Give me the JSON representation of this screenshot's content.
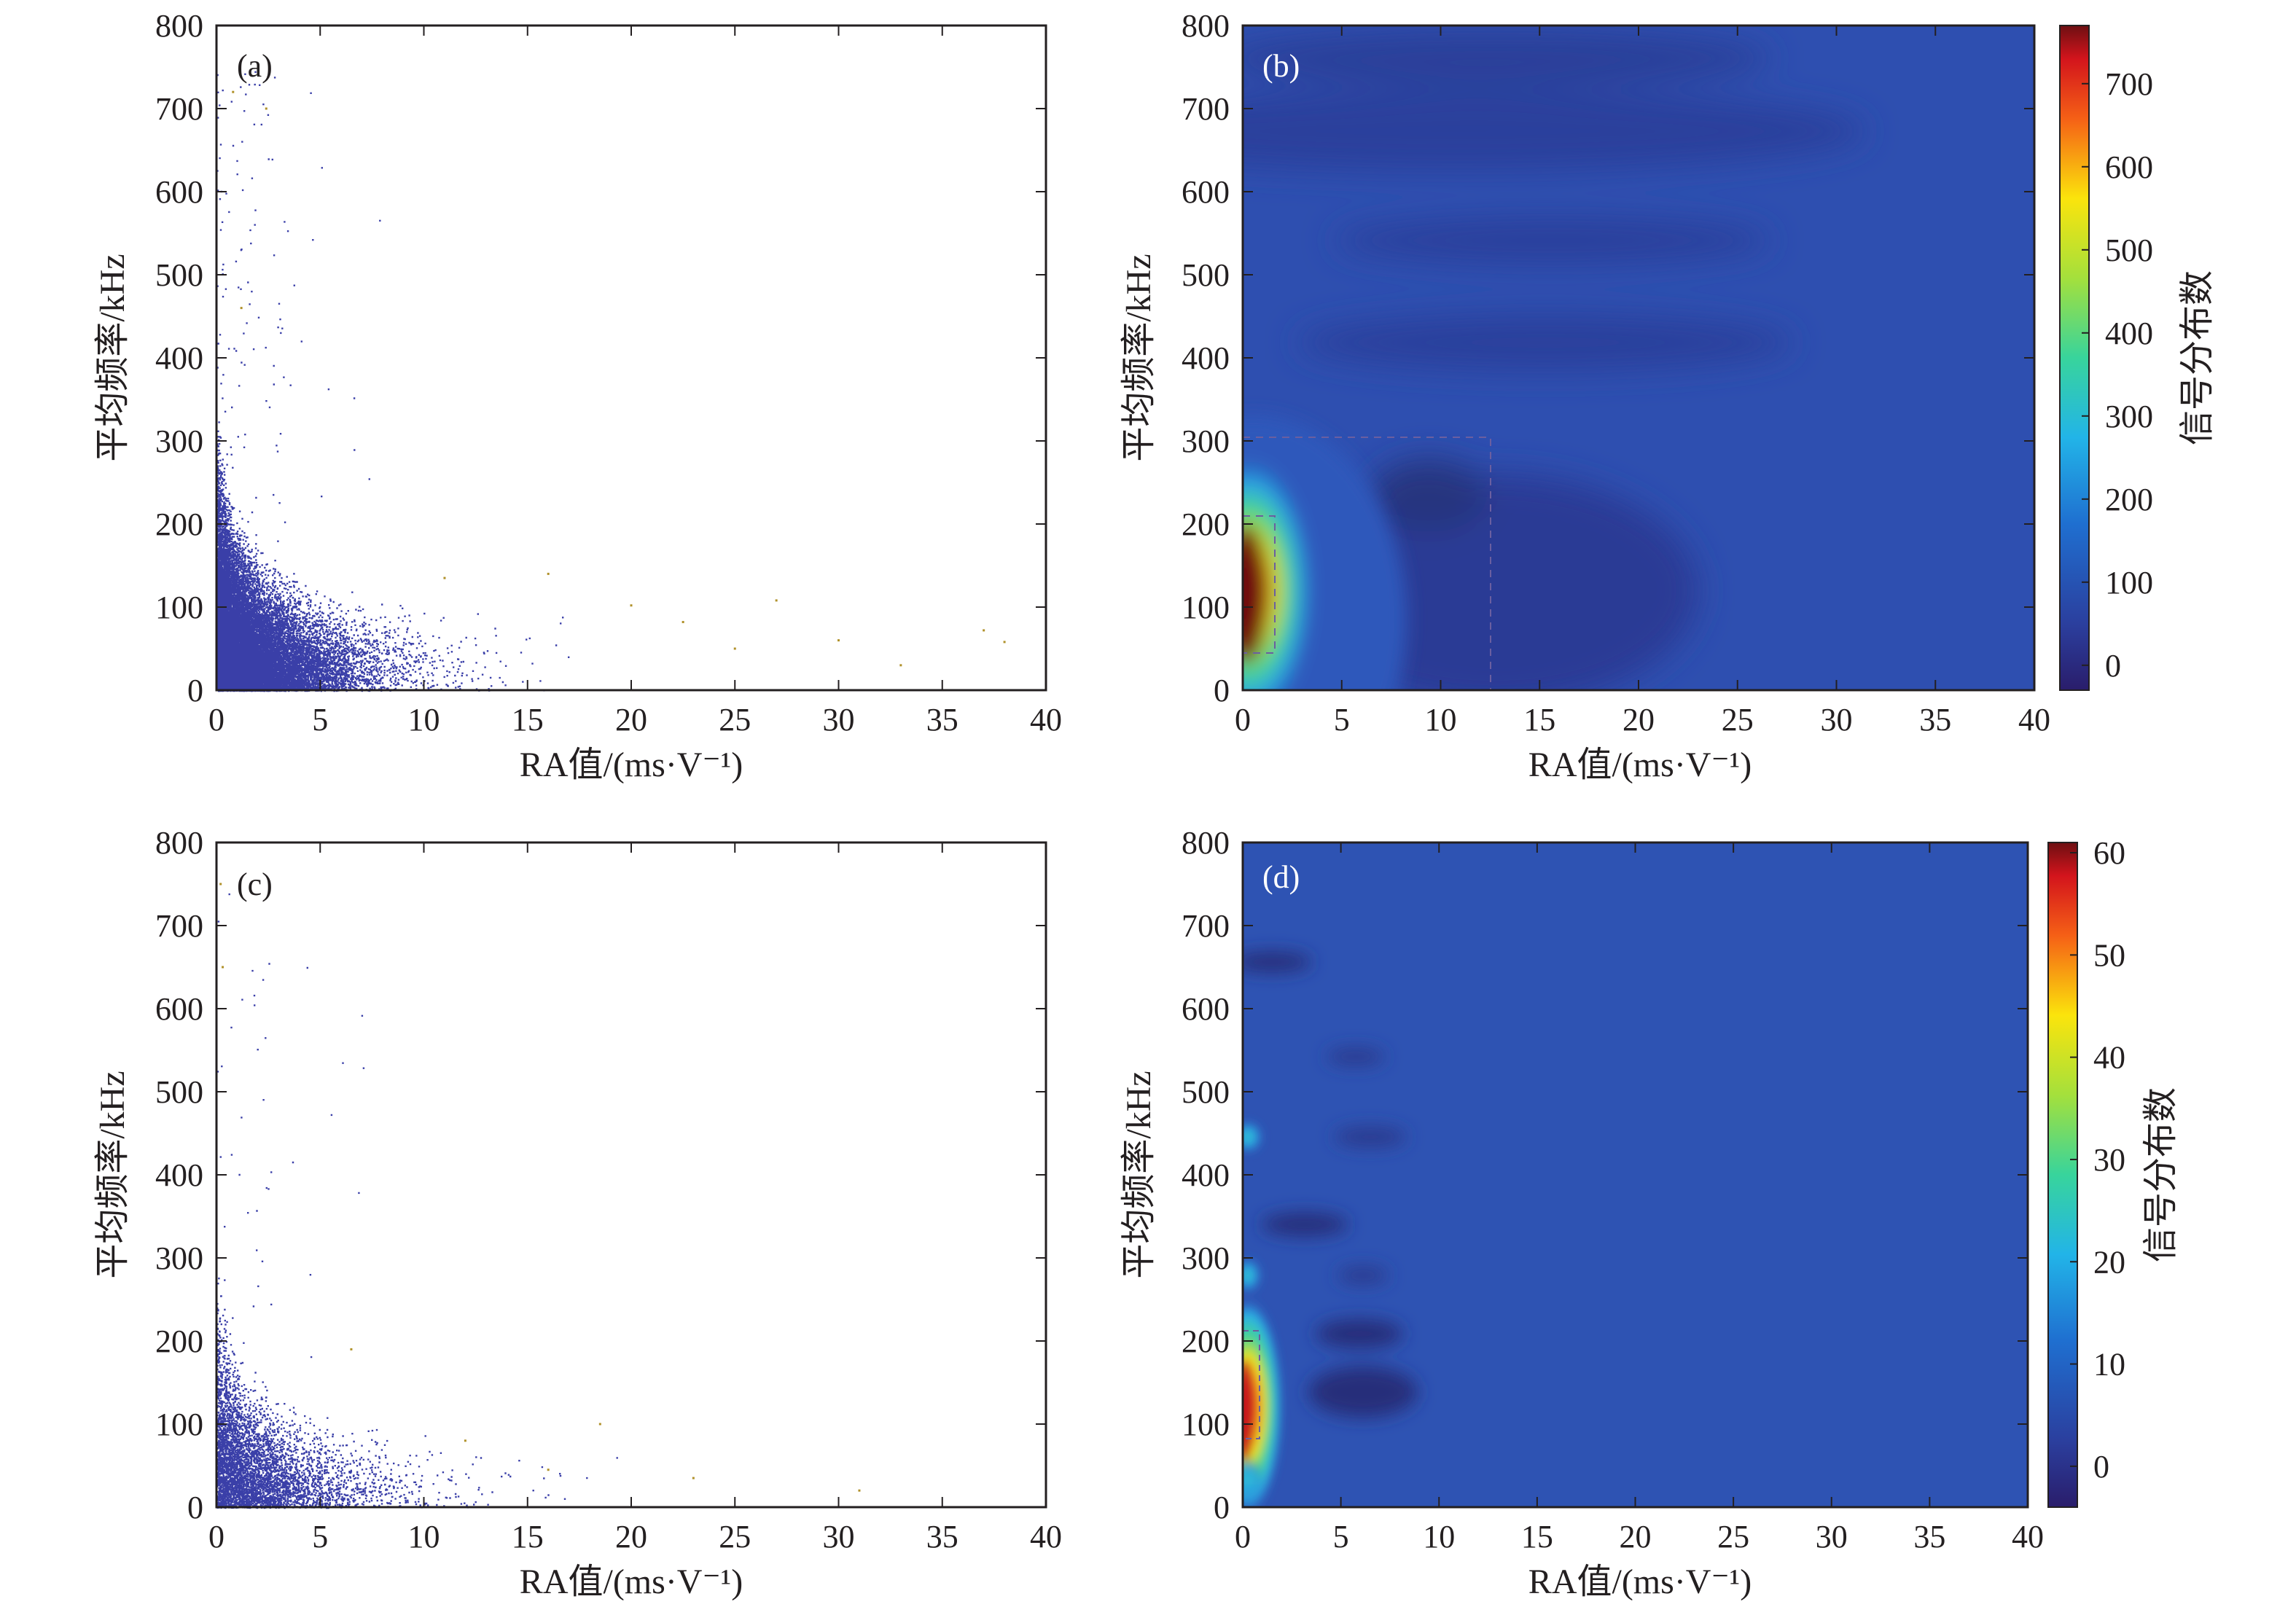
{
  "chart_data": [
    {
      "panel": "(a)",
      "type": "scatter",
      "xlabel": "RA值/(ms·V⁻¹)",
      "ylabel": "平均频率/kHz",
      "xlim": [
        0,
        40
      ],
      "ylim": [
        0,
        800
      ],
      "xticks": [
        "0",
        "5",
        "10",
        "15",
        "20",
        "25",
        "30",
        "35",
        "40"
      ],
      "yticks": [
        "0",
        "100",
        "200",
        "300",
        "400",
        "500",
        "600",
        "700",
        "800"
      ],
      "grid": false,
      "point_color": "#3a3fa8",
      "highlight_points": [
        {
          "x": 0.8,
          "y": 720
        },
        {
          "x": 2.4,
          "y": 700
        },
        {
          "x": 1.2,
          "y": 460
        },
        {
          "x": 11,
          "y": 135
        },
        {
          "x": 16,
          "y": 140
        },
        {
          "x": 20,
          "y": 102
        },
        {
          "x": 22.5,
          "y": 82
        },
        {
          "x": 27,
          "y": 108
        },
        {
          "x": 30,
          "y": 60
        },
        {
          "x": 37,
          "y": 72
        },
        {
          "x": 38,
          "y": 58
        },
        {
          "x": 25,
          "y": 50
        },
        {
          "x": 33,
          "y": 30
        }
      ]
    },
    {
      "panel": "(b)",
      "type": "heatmap",
      "xlabel": "RA值/(ms·V⁻¹)",
      "ylabel": "平均频率/kHz",
      "colorbar_label": "信号分布数",
      "xlim": [
        0,
        40
      ],
      "ylim": [
        0,
        800
      ],
      "color_range": [
        -30,
        770
      ],
      "colorbar_ticks": [
        "0",
        "100",
        "200",
        "300",
        "400",
        "500",
        "600",
        "700"
      ],
      "xticks": [
        "0",
        "5",
        "10",
        "15",
        "20",
        "25",
        "30",
        "35",
        "40"
      ],
      "yticks": [
        "0",
        "100",
        "200",
        "300",
        "400",
        "500",
        "600",
        "700",
        "800"
      ],
      "peak": {
        "x": 0.3,
        "y": 120,
        "value": 770
      },
      "background_level": 70,
      "dark_regions": [
        {
          "x": [
            3,
            26
          ],
          "y": [
            740,
            760
          ]
        },
        {
          "x": [
            0,
            38
          ],
          "y": [
            650,
            750
          ]
        },
        {
          "x": [
            7,
            21
          ],
          "y": [
            520,
            560
          ]
        },
        {
          "x": [
            6,
            26
          ],
          "y": [
            400,
            440
          ]
        },
        {
          "x": [
            6,
            22
          ],
          "y": [
            50,
            220
          ]
        }
      ],
      "dashed_boxes": [
        {
          "x": [
            0,
            12.5
          ],
          "y": [
            0,
            300
          ]
        },
        {
          "x": [
            0,
            1.5
          ],
          "y": [
            45,
            210
          ]
        }
      ]
    },
    {
      "panel": "(c)",
      "type": "scatter",
      "xlabel": "RA值/(ms·V⁻¹)",
      "ylabel": "平均频率/kHz",
      "xlim": [
        0,
        40
      ],
      "ylim": [
        0,
        800
      ],
      "xticks": [
        "0",
        "5",
        "10",
        "15",
        "20",
        "25",
        "30",
        "35",
        "40"
      ],
      "yticks": [
        "0",
        "100",
        "200",
        "300",
        "400",
        "500",
        "600",
        "700",
        "800"
      ],
      "grid": false,
      "point_color": "#3a3fa8",
      "highlight_points": [
        {
          "x": 0.2,
          "y": 750
        },
        {
          "x": 0.3,
          "y": 650
        },
        {
          "x": 6.5,
          "y": 190
        },
        {
          "x": 18.5,
          "y": 100
        },
        {
          "x": 31,
          "y": 20
        },
        {
          "x": 23,
          "y": 35
        },
        {
          "x": 12,
          "y": 80
        },
        {
          "x": 16,
          "y": 45
        }
      ]
    },
    {
      "panel": "(d)",
      "type": "heatmap",
      "xlabel": "RA值/(ms·V⁻¹)",
      "ylabel": "平均频率/kHz",
      "colorbar_label": "信号分布数",
      "xlim": [
        0,
        40
      ],
      "ylim": [
        0,
        800
      ],
      "color_range": [
        -4,
        61
      ],
      "colorbar_ticks": [
        "0",
        "10",
        "20",
        "30",
        "40",
        "50",
        "60"
      ],
      "xticks": [
        "0",
        "5",
        "10",
        "15",
        "20",
        "25",
        "30",
        "35",
        "40"
      ],
      "yticks": [
        "0",
        "100",
        "200",
        "300",
        "400",
        "500",
        "600",
        "700",
        "800"
      ],
      "peak": {
        "x": 0.3,
        "y": 135,
        "value": 61
      },
      "background_level": 8,
      "dark_regions": [
        {
          "x": [
            0.5,
            5
          ],
          "y": [
            635,
            655
          ]
        },
        {
          "x": [
            1.5,
            9
          ],
          "y": [
            330,
            350
          ]
        },
        {
          "x": [
            4,
            10
          ],
          "y": [
            190,
            215
          ]
        },
        {
          "x": [
            3,
            10
          ],
          "y": [
            115,
            150
          ]
        },
        {
          "x": [
            5,
            9
          ],
          "y": [
            260,
            280
          ]
        },
        {
          "x": [
            5,
            11
          ],
          "y": [
            430,
            450
          ]
        }
      ],
      "dashed_boxes": [
        {
          "x": [
            0,
            0.8
          ],
          "y": [
            80,
            210
          ]
        }
      ]
    }
  ]
}
